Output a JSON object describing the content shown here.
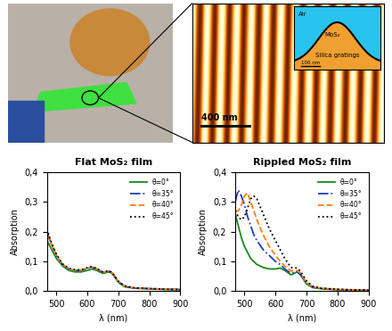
{
  "chart_data": [
    {
      "type": "line",
      "title": "Flat MoS₂ film",
      "x_label": "λ (nm)",
      "y_label": "Absorption",
      "x": [
        470,
        480,
        500,
        520,
        540,
        560,
        580,
        600,
        615,
        630,
        650,
        670,
        680,
        700,
        720,
        750,
        800,
        850,
        900
      ],
      "series": [
        {
          "name": "θ=0°",
          "color": "#1a8a1a",
          "line_style": "solid",
          "values": [
            0.17,
            0.15,
            0.11,
            0.085,
            0.07,
            0.065,
            0.065,
            0.07,
            0.075,
            0.07,
            0.06,
            0.065,
            0.06,
            0.03,
            0.015,
            0.01,
            0.008,
            0.006,
            0.005
          ]
        },
        {
          "name": "θ=35°",
          "color": "#1f3fbf",
          "line_style": "dashdot",
          "values": [
            0.2,
            0.17,
            0.12,
            0.09,
            0.075,
            0.07,
            0.07,
            0.077,
            0.08,
            0.075,
            0.063,
            0.067,
            0.062,
            0.033,
            0.017,
            0.011,
            0.009,
            0.007,
            0.006
          ]
        },
        {
          "name": "θ=40°",
          "color": "#ff7f0e",
          "line_style": "dashed",
          "values": [
            0.19,
            0.165,
            0.12,
            0.09,
            0.076,
            0.071,
            0.071,
            0.078,
            0.082,
            0.076,
            0.064,
            0.068,
            0.062,
            0.033,
            0.017,
            0.011,
            0.009,
            0.007,
            0.006
          ]
        },
        {
          "name": "θ=45°",
          "color": "#000000",
          "line_style": "dotted",
          "values": [
            0.21,
            0.175,
            0.125,
            0.092,
            0.077,
            0.072,
            0.072,
            0.079,
            0.083,
            0.077,
            0.065,
            0.069,
            0.063,
            0.034,
            0.018,
            0.012,
            0.009,
            0.007,
            0.006
          ]
        }
      ],
      "xlim": [
        470,
        900
      ],
      "xticks": [
        500,
        600,
        700,
        800,
        900
      ],
      "ylim": [
        0,
        0.4
      ],
      "yticks": [
        {
          "value": 0,
          "label": "0,0"
        },
        {
          "value": 0.1,
          "label": "0,1"
        },
        {
          "value": 0.2,
          "label": "0,2"
        },
        {
          "value": 0.3,
          "label": "0,3"
        },
        {
          "value": 0.4,
          "label": "0,4"
        }
      ],
      "legend": "upper right",
      "grid": false
    },
    {
      "type": "line",
      "title": "Rippled MoS₂ film",
      "x_label": "λ (nm)",
      "y_label": "Absorption",
      "x": [
        470,
        480,
        490,
        500,
        510,
        520,
        530,
        540,
        560,
        580,
        600,
        615,
        630,
        650,
        670,
        680,
        700,
        720,
        750,
        800,
        850,
        900
      ],
      "series": [
        {
          "name": "θ=0°",
          "color": "#1a8a1a",
          "line_style": "solid",
          "values": [
            0.26,
            0.22,
            0.18,
            0.15,
            0.13,
            0.11,
            0.1,
            0.09,
            0.08,
            0.075,
            0.075,
            0.078,
            0.07,
            0.055,
            0.065,
            0.055,
            0.025,
            0.012,
            0.008,
            0.005,
            0.004,
            0.003
          ]
        },
        {
          "name": "θ=35°",
          "color": "#1f3fbf",
          "line_style": "dashdot",
          "values": [
            0.3,
            0.34,
            0.32,
            0.29,
            0.25,
            0.22,
            0.19,
            0.17,
            0.14,
            0.12,
            0.1,
            0.09,
            0.075,
            0.06,
            0.065,
            0.058,
            0.028,
            0.014,
            0.009,
            0.006,
            0.004,
            0.003
          ]
        },
        {
          "name": "θ=40°",
          "color": "#ff7f0e",
          "line_style": "dashed",
          "values": [
            0.27,
            0.27,
            0.29,
            0.32,
            0.33,
            0.3,
            0.27,
            0.24,
            0.19,
            0.15,
            0.12,
            0.1,
            0.085,
            0.068,
            0.07,
            0.062,
            0.03,
            0.015,
            0.01,
            0.006,
            0.004,
            0.003
          ]
        },
        {
          "name": "θ=45°",
          "color": "#000000",
          "line_style": "dotted",
          "values": [
            0.27,
            0.25,
            0.24,
            0.25,
            0.28,
            0.31,
            0.32,
            0.31,
            0.26,
            0.21,
            0.17,
            0.14,
            0.11,
            0.08,
            0.078,
            0.068,
            0.035,
            0.017,
            0.01,
            0.007,
            0.005,
            0.004
          ]
        }
      ],
      "xlim": [
        470,
        900
      ],
      "xticks": [
        500,
        600,
        700,
        800,
        900
      ],
      "ylim": [
        0,
        0.4
      ],
      "yticks": [
        {
          "value": 0,
          "label": "0,0"
        },
        {
          "value": 0.1,
          "label": "0,1"
        },
        {
          "value": 0.2,
          "label": "0,2"
        },
        {
          "value": 0.3,
          "label": "0,3"
        },
        {
          "value": 0.4,
          "label": "0,4"
        }
      ],
      "legend": "upper right",
      "grid": false
    }
  ],
  "afm_image": {
    "scale_bar": "400 nm",
    "inset": {
      "labels": [
        "Air",
        "MoS₂",
        "Silica gratings"
      ],
      "scale_bar": "100 nm"
    }
  }
}
